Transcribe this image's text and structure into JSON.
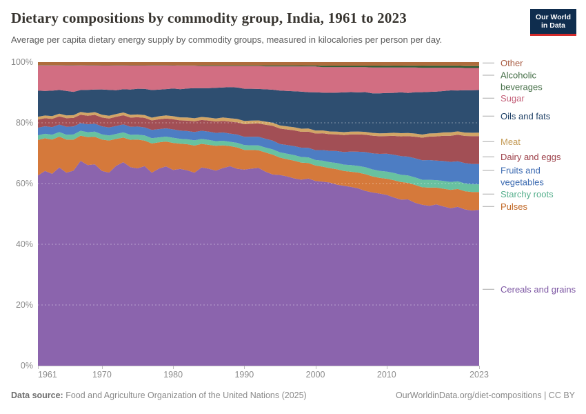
{
  "header": {
    "logo": {
      "line1": "Our World",
      "line2": "in Data"
    }
  },
  "footer": {
    "source_label": "Data source:",
    "source_text": " Food and Agriculture Organization of the United Nations (2025)",
    "credit": "OurWorldinData.org/diet-compositions | CC BY"
  },
  "chart_data": {
    "type": "area",
    "stacked": true,
    "unit": "%",
    "title": "Dietary compositions by commodity group, India, 1961 to 2023",
    "subtitle": "Average per capita dietary energy supply by commodity groups, measured in kilocalories per person per day.",
    "xlabel": "",
    "ylabel": "",
    "ylim": [
      0,
      100
    ],
    "grid": "dashed horizontal at 20/40/60/80%",
    "legend_position": "right",
    "x_ticks": [
      1961,
      1970,
      1980,
      1990,
      2000,
      2010,
      2023
    ],
    "y_ticks_percent": [
      0,
      20,
      40,
      60,
      80,
      100
    ],
    "x": [
      1961,
      1962,
      1963,
      1964,
      1965,
      1966,
      1967,
      1968,
      1969,
      1970,
      1971,
      1972,
      1973,
      1974,
      1975,
      1976,
      1977,
      1978,
      1979,
      1980,
      1981,
      1982,
      1983,
      1984,
      1985,
      1986,
      1987,
      1988,
      1989,
      1990,
      1991,
      1992,
      1993,
      1994,
      1995,
      1996,
      1997,
      1998,
      1999,
      2000,
      2001,
      2002,
      2003,
      2004,
      2005,
      2006,
      2007,
      2008,
      2009,
      2010,
      2011,
      2012,
      2013,
      2014,
      2015,
      2016,
      2017,
      2018,
      2019,
      2020,
      2021,
      2022,
      2023
    ],
    "series": [
      {
        "name": "Cereals and grains",
        "fill": "#8B64AD",
        "label_color": "#7D57A3",
        "values": [
          62.6,
          64.9,
          63.2,
          65.4,
          63.0,
          63.6,
          67.4,
          65.8,
          66.0,
          63.4,
          62.6,
          65.4,
          66.3,
          64.4,
          63.7,
          64.8,
          62.9,
          64.4,
          65.0,
          63.7,
          64.1,
          63.5,
          62.9,
          64.7,
          64.3,
          63.7,
          64.6,
          65.3,
          64.4,
          64.1,
          64.4,
          64.8,
          63.5,
          62.4,
          61.5,
          61.0,
          60.4,
          59.8,
          60.3,
          60.0,
          59.0,
          58.4,
          57.6,
          57.0,
          56.6,
          56.2,
          55.4,
          54.9,
          54.6,
          54.8,
          53.6,
          52.8,
          53.3,
          52.0,
          51.3,
          51.1,
          51.9,
          51.2,
          50.7,
          51.6,
          50.6,
          50.3,
          50.8
        ]
      },
      {
        "name": "Pulses",
        "fill": "#D5793B",
        "label_color": "#C06623",
        "values": [
          11.7,
          10.9,
          11.3,
          10.2,
          10.8,
          10.1,
          8.3,
          9.2,
          9.0,
          10.2,
          10.4,
          8.8,
          8.0,
          8.9,
          9.3,
          8.3,
          9.5,
          8.6,
          8.1,
          8.8,
          8.2,
          8.5,
          8.8,
          7.7,
          7.8,
          8.1,
          7.4,
          6.6,
          7.0,
          6.4,
          6.1,
          5.8,
          6.3,
          6.5,
          5.6,
          5.5,
          5.7,
          5.5,
          5.0,
          5.0,
          4.8,
          4.6,
          4.9,
          4.7,
          4.8,
          5.0,
          5.3,
          5.1,
          5.0,
          5.2,
          5.5,
          5.6,
          5.3,
          5.7,
          5.6,
          5.8,
          5.4,
          5.7,
          5.9,
          5.8,
          5.9,
          6.0,
          5.8
        ]
      },
      {
        "name": "Starchy roots",
        "fill": "#68C1A0",
        "label_color": "#55AF8C",
        "values": [
          1.5,
          1.5,
          1.6,
          1.5,
          1.6,
          1.7,
          1.6,
          1.6,
          1.7,
          1.7,
          1.6,
          1.6,
          1.7,
          1.6,
          1.6,
          1.7,
          1.7,
          1.6,
          1.6,
          1.7,
          1.6,
          1.6,
          1.7,
          1.6,
          1.6,
          1.5,
          1.5,
          1.4,
          1.5,
          1.6,
          1.5,
          1.6,
          1.6,
          1.7,
          1.7,
          1.8,
          1.8,
          1.8,
          1.8,
          1.8,
          1.9,
          1.9,
          2.0,
          2.0,
          2.1,
          2.1,
          2.2,
          2.2,
          2.2,
          2.3,
          2.3,
          2.3,
          2.4,
          2.4,
          2.4,
          2.5,
          2.4,
          2.5,
          2.5,
          2.5,
          2.5,
          2.5,
          2.5
        ]
      },
      {
        "name": "Fruits and vegetables",
        "fill": "#4D7DC3",
        "label_color": "#3E6CB2",
        "values": [
          2.5,
          2.5,
          2.5,
          2.5,
          2.6,
          2.6,
          2.5,
          2.6,
          2.6,
          2.6,
          2.6,
          2.6,
          2.6,
          2.6,
          2.6,
          2.6,
          2.7,
          2.7,
          2.7,
          2.7,
          2.7,
          2.7,
          2.7,
          2.7,
          2.7,
          2.7,
          2.7,
          2.7,
          2.7,
          2.7,
          2.8,
          2.8,
          2.9,
          2.9,
          2.7,
          2.8,
          2.9,
          3.0,
          3.1,
          3.2,
          3.4,
          3.6,
          3.8,
          4.0,
          4.3,
          4.5,
          4.8,
          5.1,
          5.4,
          5.7,
          5.8,
          5.9,
          6.0,
          6.1,
          6.2,
          6.3,
          6.3,
          6.4,
          6.5,
          6.5,
          6.6,
          6.6,
          6.6
        ]
      },
      {
        "name": "Dairy and eggs",
        "fill": "#A24F55",
        "label_color": "#9B3E47",
        "values": [
          2.7,
          2.7,
          2.7,
          2.7,
          2.8,
          2.8,
          2.8,
          2.8,
          2.9,
          2.9,
          2.9,
          3.0,
          3.0,
          3.0,
          3.0,
          3.1,
          3.1,
          3.2,
          3.2,
          3.3,
          3.3,
          3.4,
          3.5,
          3.5,
          3.6,
          3.7,
          3.8,
          3.9,
          4.0,
          4.1,
          4.3,
          4.4,
          4.6,
          4.8,
          5.0,
          5.0,
          5.1,
          5.1,
          5.2,
          5.4,
          5.4,
          5.3,
          5.3,
          5.4,
          5.4,
          5.5,
          5.5,
          5.6,
          5.6,
          5.7,
          6.0,
          6.3,
          6.6,
          6.9,
          7.2,
          7.5,
          7.8,
          8.1,
          8.4,
          8.6,
          8.8,
          9.0,
          9.1
        ]
      },
      {
        "name": "Meat",
        "fill": "#D2A566",
        "label_color": "#C49B56",
        "values": [
          0.9,
          0.9,
          0.9,
          0.9,
          0.9,
          0.9,
          0.9,
          0.9,
          0.9,
          0.9,
          0.9,
          0.9,
          0.9,
          0.9,
          0.9,
          0.9,
          0.9,
          1.0,
          1.0,
          1.0,
          1.0,
          1.0,
          1.0,
          1.0,
          1.0,
          1.0,
          1.1,
          1.1,
          1.1,
          1.1,
          1.0,
          1.0,
          1.0,
          1.0,
          1.0,
          1.0,
          1.0,
          1.0,
          1.0,
          1.0,
          0.9,
          0.9,
          0.9,
          0.9,
          0.9,
          0.9,
          0.9,
          0.9,
          0.9,
          0.9,
          1.0,
          1.0,
          1.0,
          1.0,
          1.0,
          1.0,
          1.0,
          1.1,
          1.1,
          1.1,
          1.1,
          1.1,
          1.1
        ]
      },
      {
        "name": "Oils and fats",
        "fill": "#2E4E70",
        "label_color": "#1E4066",
        "values": [
          8.6,
          8.2,
          8.4,
          7.8,
          8.0,
          7.6,
          7.2,
          7.6,
          7.4,
          8.2,
          8.4,
          7.8,
          7.6,
          8.2,
          8.3,
          8.5,
          9.0,
          8.7,
          8.6,
          9.0,
          9.2,
          9.4,
          9.8,
          9.4,
          9.6,
          10.0,
          9.8,
          10.2,
          10.3,
          10.5,
          10.4,
          10.3,
          10.6,
          10.8,
          11.2,
          11.4,
          11.6,
          11.9,
          11.7,
          12.4,
          12.1,
          12.3,
          12.4,
          12.6,
          12.5,
          12.4,
          12.6,
          12.5,
          12.7,
          12.9,
          12.7,
          13.0,
          12.8,
          13.2,
          13.5,
          13.3,
          13.4,
          13.3,
          13.5,
          13.3,
          13.7,
          13.8,
          13.9
        ]
      },
      {
        "name": "Sugar",
        "fill": "#D26E82",
        "label_color": "#C4617A",
        "values": [
          8.3,
          8.5,
          8.3,
          8.1,
          8.3,
          8.6,
          8.1,
          8.0,
          7.9,
          7.8,
          7.9,
          8.1,
          7.7,
          7.8,
          7.5,
          7.6,
          8.0,
          7.9,
          7.7,
          7.5,
          7.6,
          7.4,
          7.3,
          7.2,
          7.2,
          7.1,
          7.0,
          6.9,
          7.0,
          7.4,
          7.4,
          7.5,
          7.5,
          7.6,
          7.8,
          7.9,
          8.0,
          8.1,
          8.3,
          8.4,
          8.2,
          8.2,
          8.1,
          8.0,
          7.9,
          8.0,
          7.9,
          8.2,
          8.2,
          8.2,
          8.1,
          7.9,
          8.2,
          7.9,
          7.8,
          7.7,
          7.7,
          7.5,
          7.3,
          7.4,
          7.2,
          7.2,
          7.2
        ]
      },
      {
        "name": "Alcoholic beverages",
        "fill": "#2E5F36",
        "label_color": "#446E46",
        "values": [
          0.1,
          0.1,
          0.1,
          0.1,
          0.1,
          0.1,
          0.1,
          0.1,
          0.1,
          0.1,
          0.1,
          0.1,
          0.1,
          0.1,
          0.1,
          0.1,
          0.1,
          0.1,
          0.1,
          0.1,
          0.1,
          0.1,
          0.1,
          0.2,
          0.2,
          0.2,
          0.2,
          0.2,
          0.2,
          0.2,
          0.2,
          0.2,
          0.3,
          0.3,
          0.3,
          0.3,
          0.3,
          0.3,
          0.3,
          0.3,
          0.4,
          0.4,
          0.4,
          0.4,
          0.4,
          0.4,
          0.4,
          0.5,
          0.5,
          0.5,
          0.5,
          0.5,
          0.5,
          0.5,
          0.6,
          0.6,
          0.6,
          0.6,
          0.6,
          0.6,
          0.6,
          0.6,
          0.6
        ]
      },
      {
        "name": "Other",
        "fill": "#AE6C3C",
        "label_color": "#A85B41",
        "values": [
          1.0,
          1.0,
          1.0,
          1.0,
          1.0,
          1.0,
          1.0,
          1.0,
          1.0,
          1.0,
          1.0,
          1.0,
          1.0,
          1.0,
          1.0,
          1.0,
          1.0,
          1.0,
          1.0,
          1.0,
          1.1,
          1.1,
          1.1,
          1.1,
          1.1,
          1.1,
          1.1,
          1.1,
          1.1,
          1.1,
          1.1,
          1.1,
          1.1,
          1.1,
          1.1,
          1.1,
          1.1,
          1.1,
          1.1,
          1.1,
          1.2,
          1.2,
          1.2,
          1.2,
          1.2,
          1.2,
          1.2,
          1.2,
          1.2,
          1.2,
          1.2,
          1.2,
          1.2,
          1.2,
          1.2,
          1.2,
          1.2,
          1.2,
          1.2,
          1.2,
          1.3,
          1.3,
          1.3
        ]
      }
    ]
  }
}
